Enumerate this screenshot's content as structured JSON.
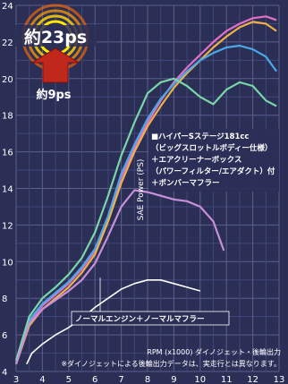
{
  "chart_data": {
    "type": "line",
    "ylabel": "SAE Power (PS)",
    "xlabel": "RPM (x1000) ダイノジェット・後輪出力",
    "footnote": "※ダイノジェットによる後輪出力データは、実走行とは異なります。",
    "xlim": [
      3,
      13
    ],
    "ylim": [
      4,
      24
    ],
    "x_ticks": [
      3,
      4,
      5,
      6,
      7,
      8,
      9,
      10,
      11,
      12,
      13
    ],
    "y_ticks": [
      4,
      6,
      8,
      10,
      12,
      14,
      16,
      18,
      20,
      22,
      24
    ],
    "grid": true,
    "badge_top": "約23ps",
    "badge_bottom": "約9ps",
    "legend_lines": [
      "■ハイパーSステージ181cc",
      "（ビッグスロットルボディー仕様）",
      "＋エアクリーナーボックス",
      "（パワーフィルター/エアダクト）付",
      "＋ボンバーマフラー"
    ],
    "annotation": "ノーマルエンジン＋ノーマルマフラー",
    "series": [
      {
        "color": "#e070c8",
        "x": [
          3.0,
          3.5,
          4.0,
          4.5,
          5.0,
          5.5,
          6.0,
          6.5,
          7.0,
          7.5,
          8.0,
          8.5,
          9.0,
          9.5,
          10.0,
          10.5,
          11.0,
          11.5,
          12.0,
          12.5,
          12.9
        ],
        "y": [
          4.5,
          6.7,
          7.6,
          8.2,
          8.8,
          9.6,
          10.6,
          12.4,
          14.6,
          16.2,
          17.6,
          18.8,
          19.8,
          20.6,
          21.3,
          22.0,
          22.6,
          23.0,
          23.3,
          23.4,
          23.2
        ]
      },
      {
        "color": "#f0b048",
        "x": [
          3.0,
          3.5,
          4.0,
          4.5,
          5.0,
          5.5,
          6.0,
          6.5,
          7.0,
          7.5,
          8.0,
          8.5,
          9.0,
          9.5,
          10.0,
          10.5,
          11.0,
          11.5,
          12.0,
          12.5,
          12.9
        ],
        "y": [
          4.4,
          6.5,
          7.4,
          8.0,
          8.6,
          9.4,
          10.4,
          12.2,
          14.3,
          16.0,
          17.4,
          18.5,
          19.5,
          20.3,
          21.0,
          21.7,
          22.3,
          22.8,
          23.1,
          23.0,
          22.6
        ]
      },
      {
        "color": "#4aa8e6",
        "x": [
          3.0,
          3.5,
          4.0,
          4.5,
          5.0,
          5.5,
          6.0,
          6.5,
          7.0,
          7.5,
          8.0,
          8.5,
          9.0,
          9.5,
          10.0,
          10.5,
          11.0,
          11.5,
          12.0,
          12.5,
          12.9
        ],
        "y": [
          4.5,
          6.8,
          7.7,
          8.3,
          8.9,
          9.7,
          10.7,
          12.5,
          14.8,
          16.4,
          17.8,
          18.9,
          19.7,
          20.4,
          21.0,
          21.4,
          21.7,
          21.8,
          21.6,
          21.2,
          20.4
        ]
      },
      {
        "color": "#7ad6a8",
        "x": [
          3.0,
          3.5,
          4.0,
          4.5,
          5.0,
          5.5,
          6.0,
          6.5,
          7.0,
          7.5,
          8.0,
          8.5,
          9.0,
          9.5,
          10.0,
          10.5,
          11.0,
          11.5,
          12.0,
          12.5,
          12.9
        ],
        "y": [
          4.6,
          7.0,
          8.0,
          8.6,
          9.3,
          10.2,
          11.6,
          13.6,
          15.8,
          17.6,
          19.2,
          19.8,
          20.0,
          19.6,
          19.0,
          18.6,
          19.4,
          19.8,
          19.6,
          18.8,
          18.5
        ]
      },
      {
        "color": "#c890d8",
        "x": [
          3.0,
          3.5,
          4.0,
          4.5,
          5.0,
          5.5,
          6.0,
          6.5,
          7.0,
          7.5,
          8.0,
          8.5,
          9.0,
          9.5,
          10.0,
          10.5,
          10.9
        ],
        "y": [
          4.4,
          6.6,
          7.4,
          7.9,
          8.4,
          9.0,
          9.9,
          11.4,
          13.0,
          13.9,
          13.8,
          13.6,
          13.4,
          13.3,
          13.0,
          12.2,
          10.6
        ]
      },
      {
        "color": "#ffffff",
        "x": [
          3.4,
          3.6,
          4.0,
          4.5,
          5.0,
          5.5,
          6.0,
          6.5,
          7.0,
          7.5,
          8.0,
          8.5,
          9.0,
          9.5,
          10.0
        ],
        "y": [
          4.4,
          5.0,
          5.5,
          6.0,
          6.4,
          6.9,
          7.5,
          8.0,
          8.5,
          8.8,
          9.0,
          9.0,
          8.8,
          8.6,
          8.4
        ]
      }
    ]
  }
}
